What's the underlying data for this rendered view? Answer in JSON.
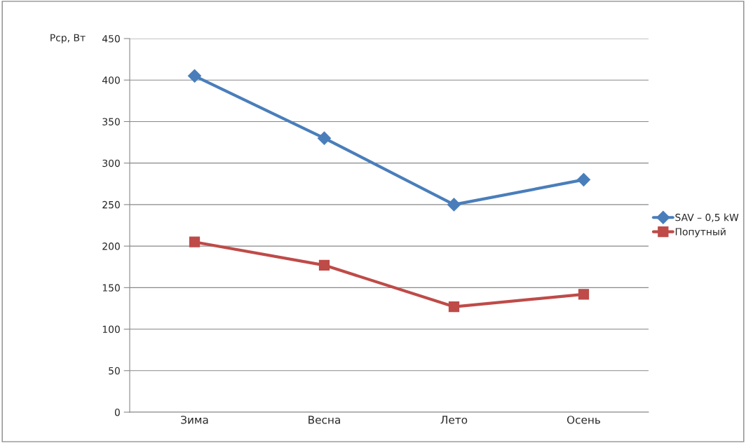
{
  "chart_data": {
    "type": "line",
    "ylabel": "Pcp, Вт",
    "categories": [
      "Зима",
      "Весна",
      "Лето",
      "Осень"
    ],
    "series": [
      {
        "name": "SAV – 0,5 kW",
        "color": "#4a7ebb",
        "marker": "diamond",
        "values": [
          405,
          330,
          250,
          280
        ]
      },
      {
        "name": "Попутный",
        "color": "#be4b48",
        "marker": "square",
        "values": [
          205,
          177,
          127,
          142
        ]
      }
    ],
    "ylim": [
      0,
      450
    ],
    "yticks": [
      0,
      50,
      100,
      150,
      200,
      250,
      300,
      350,
      400,
      450
    ],
    "grid": "y",
    "legend": "right",
    "line_style": "solid"
  }
}
